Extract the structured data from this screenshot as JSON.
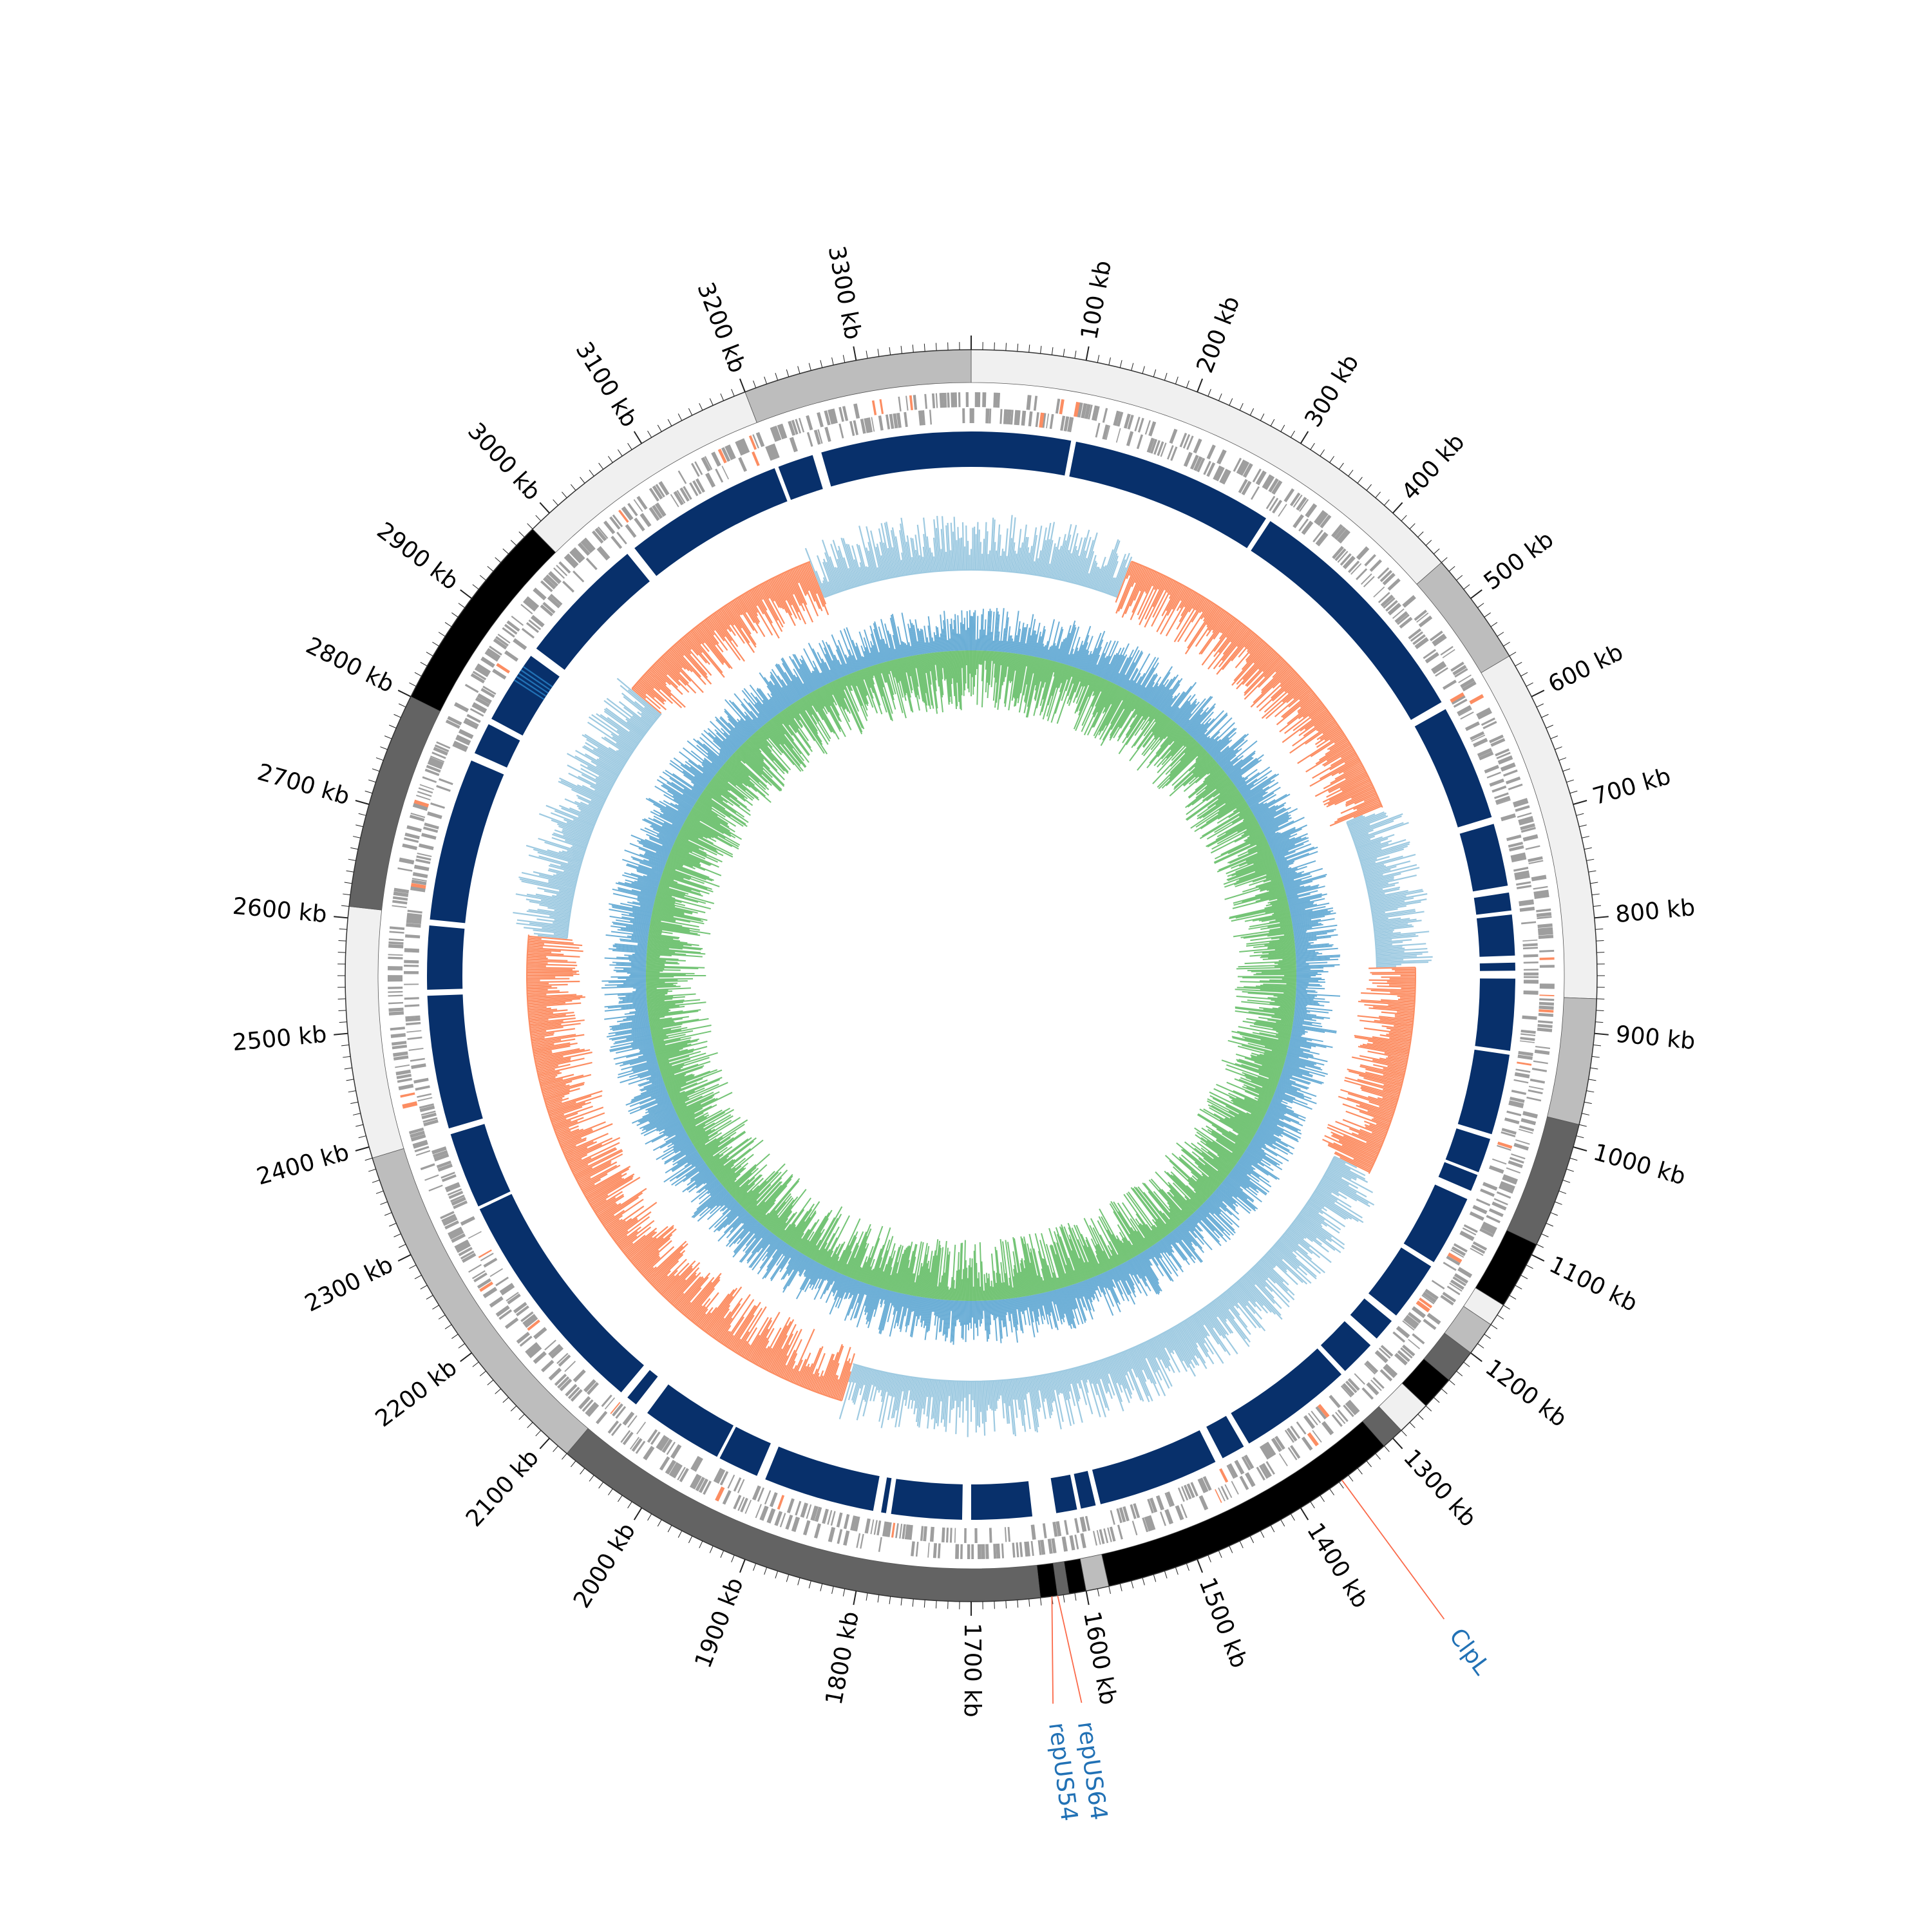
{
  "genome": {
    "total_kb": 3400,
    "unit": "kb",
    "tick_labels": [
      "100 kb",
      "200 kb",
      "300 kb",
      "400 kb",
      "500 kb",
      "600 kb",
      "700 kb",
      "800 kb",
      "900 kb",
      "1000 kb",
      "1100 kb",
      "1200 kb",
      "1300 kb",
      "1400 kb",
      "1500 kb",
      "1600 kb",
      "1700 kb",
      "1800 kb",
      "1900 kb",
      "2000 kb",
      "2100 kb",
      "2200 kb",
      "2300 kb",
      "2400 kb",
      "2500 kb",
      "2600 kb",
      "2700 kb",
      "2800 kb",
      "2900 kb",
      "3000 kb",
      "3100 kb",
      "3200 kb",
      "3300 kb"
    ],
    "tick_positions_kb": [
      100,
      200,
      300,
      400,
      500,
      600,
      700,
      800,
      900,
      1000,
      1100,
      1200,
      1300,
      1400,
      1500,
      1600,
      1700,
      1800,
      1900,
      2000,
      2100,
      2200,
      2300,
      2400,
      2500,
      2600,
      2700,
      2800,
      2900,
      3000,
      3100,
      3200,
      3300
    ]
  },
  "colors": {
    "contig_shades": [
      "#f0f0f0",
      "#bdbdbd",
      "#636363",
      "#000000"
    ],
    "gene_gray": "#9e9e9e",
    "gene_highlight": "#fc8d62",
    "coverage_blue": "#08306b",
    "coverage_highlight": "#2171b5",
    "gc_skew_positive": "#9ecae1",
    "gc_skew_negative": "#fc8d62",
    "gc_content": "#6baed6",
    "gc_inner": "#74c476",
    "label_color": "#2171b5",
    "label_line": "#fb6a4a"
  },
  "contigs": [
    {
      "start": 0,
      "end": 460,
      "shade": 0
    },
    {
      "start": 460,
      "end": 560,
      "shade": 1
    },
    {
      "start": 560,
      "end": 870,
      "shade": 0
    },
    {
      "start": 870,
      "end": 980,
      "shade": 1
    },
    {
      "start": 980,
      "end": 1090,
      "shade": 2
    },
    {
      "start": 1090,
      "end": 1150,
      "shade": 3
    },
    {
      "start": 1150,
      "end": 1170,
      "shade": 0
    },
    {
      "start": 1170,
      "end": 1200,
      "shade": 1
    },
    {
      "start": 1200,
      "end": 1230,
      "shade": 2
    },
    {
      "start": 1230,
      "end": 1260,
      "shade": 3
    },
    {
      "start": 1260,
      "end": 1290,
      "shade": 0
    },
    {
      "start": 1290,
      "end": 1310,
      "shade": 2
    },
    {
      "start": 1310,
      "end": 1580,
      "shade": 3
    },
    {
      "start": 1580,
      "end": 1600,
      "shade": 1
    },
    {
      "start": 1600,
      "end": 1615,
      "shade": 3
    },
    {
      "start": 1615,
      "end": 1625,
      "shade": 2
    },
    {
      "start": 1625,
      "end": 1640,
      "shade": 3
    },
    {
      "start": 1640,
      "end": 2080,
      "shade": 2
    },
    {
      "start": 2080,
      "end": 2390,
      "shade": 1
    },
    {
      "start": 2390,
      "end": 2610,
      "shade": 0
    },
    {
      "start": 2610,
      "end": 2800,
      "shade": 2
    },
    {
      "start": 2800,
      "end": 2980,
      "shade": 3
    },
    {
      "start": 2980,
      "end": 3200,
      "shade": 0
    },
    {
      "start": 3200,
      "end": 3400,
      "shade": 1
    }
  ],
  "coverage_gaps_kb": [
    100,
    310,
    565,
    690,
    760,
    785,
    830,
    845,
    925,
    1010,
    1050,
    1070,
    1150,
    1215,
    1245,
    1290,
    1410,
    1440,
    1570,
    1590,
    1615,
    1622,
    1630,
    1700,
    1780,
    1790,
    1910,
    1960,
    2045,
    2050,
    2070,
    2310,
    2390,
    2530,
    2600,
    2770,
    2810,
    2890,
    3030,
    3200,
    3240
  ],
  "skew_segments": [
    {
      "start": 0,
      "end": 200,
      "sign": 1
    },
    {
      "start": 200,
      "end": 640,
      "sign": -1
    },
    {
      "start": 640,
      "end": 840,
      "sign": 1
    },
    {
      "start": 840,
      "end": 1100,
      "sign": -1
    },
    {
      "start": 1100,
      "end": 1620,
      "sign": 1
    },
    {
      "start": 1620,
      "end": 1860,
      "sign": 1
    },
    {
      "start": 1860,
      "end": 2370,
      "sign": -1
    },
    {
      "start": 2370,
      "end": 2600,
      "sign": -1
    },
    {
      "start": 2600,
      "end": 2930,
      "sign": 1
    },
    {
      "start": 2930,
      "end": 3200,
      "sign": -1
    },
    {
      "start": 3200,
      "end": 3400,
      "sign": 1
    }
  ],
  "features": [
    {
      "name": "ClpL",
      "position_kb": 1357
    },
    {
      "name": "repUS64",
      "position_kb": 1625
    },
    {
      "name": "repUS54",
      "position_kb": 1630
    }
  ]
}
